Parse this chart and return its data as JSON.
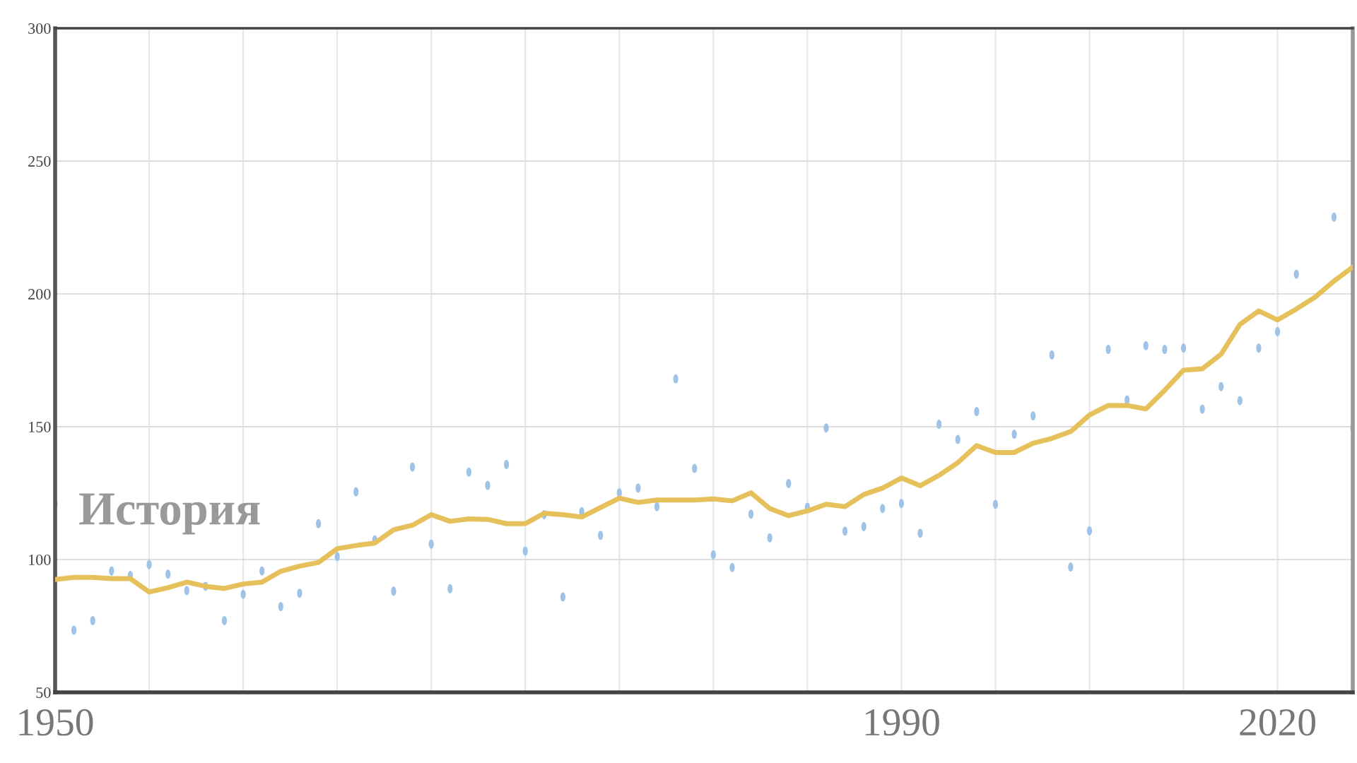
{
  "chart_data": {
    "type": "line",
    "categories": [
      "1950",
      null,
      null,
      null,
      null,
      null,
      null,
      null,
      null,
      null,
      null,
      null,
      null,
      null,
      null,
      null,
      null,
      null,
      null,
      null,
      null,
      null,
      null,
      null,
      null,
      null,
      null,
      null,
      null,
      null,
      null,
      null,
      null,
      null,
      null,
      null,
      null,
      null,
      null,
      null,
      null,
      null,
      null,
      null,
      null,
      "1990",
      null,
      null,
      null,
      null,
      null,
      null,
      null,
      null,
      null,
      null,
      null,
      null,
      null,
      null,
      null,
      null,
      null,
      null,
      null,
      "2020",
      null,
      null,
      null,
      null
    ],
    "series": [
      {
        "type": "scatter",
        "color": "#9ec3e6",
        "values": [
          120.9,
          73.4,
          77,
          95.7,
          94,
          98.1,
          94.5,
          88.3,
          89.9,
          77,
          86.9,
          95.7,
          82.3,
          87.3,
          113.5,
          101.1,
          125.5,
          107.4,
          88.1,
          134.8,
          105.8,
          89,
          132.9,
          127.9,
          135.8,
          103.2,
          116.9,
          85.9,
          118,
          109.1,
          125.1,
          126.9,
          119.9,
          168,
          134.3,
          101.8,
          97,
          117.1,
          108.2,
          128.6,
          119.7,
          149.5,
          110.7,
          112.4,
          119.2,
          121.1,
          109.9,
          150.9,
          145.2,
          155.7,
          120.8,
          147.2,
          154.1,
          177,
          97.2,
          110.8,
          179.1,
          160.1,
          180.5,
          179.1,
          179.6,
          156.6,
          165.1,
          159.8,
          179.6,
          185.8,
          207.4,
          null,
          228.9,
          149.5
        ]
      },
      {
        "color": "#e6c05a",
        "values": [
          92.5,
          93.3,
          93.3,
          92.8,
          92.8,
          87.8,
          89.4,
          91.5,
          89.9,
          89.1,
          90.8,
          91.5,
          95.6,
          97.5,
          98.9,
          104.1,
          105.3,
          106.2,
          111.2,
          112.9,
          116.9,
          114.4,
          115.3,
          115.1,
          113.5,
          113.5,
          117.4,
          116.9,
          116,
          119.6,
          123.1,
          121.5,
          122.4,
          122.4,
          122.4,
          122.8,
          122.1,
          125.1,
          119.2,
          116.5,
          118.3,
          120.8,
          119.9,
          124.5,
          126.9,
          130.7,
          127.8,
          131.7,
          136.5,
          142.9,
          140.3,
          140.3,
          143.8,
          145.6,
          148.2,
          154.4,
          158,
          158,
          156.7,
          163.7,
          171.3,
          171.8,
          177.3,
          188.5,
          193.6,
          190.2,
          194.3,
          198.8,
          204.8,
          210.1
        ]
      }
    ],
    "ylim": [
      50,
      300
    ],
    "yticks": [
      50,
      100,
      150,
      200,
      250,
      300
    ],
    "grid": true,
    "line_style": "solid",
    "annotations": [
      "История"
    ]
  }
}
